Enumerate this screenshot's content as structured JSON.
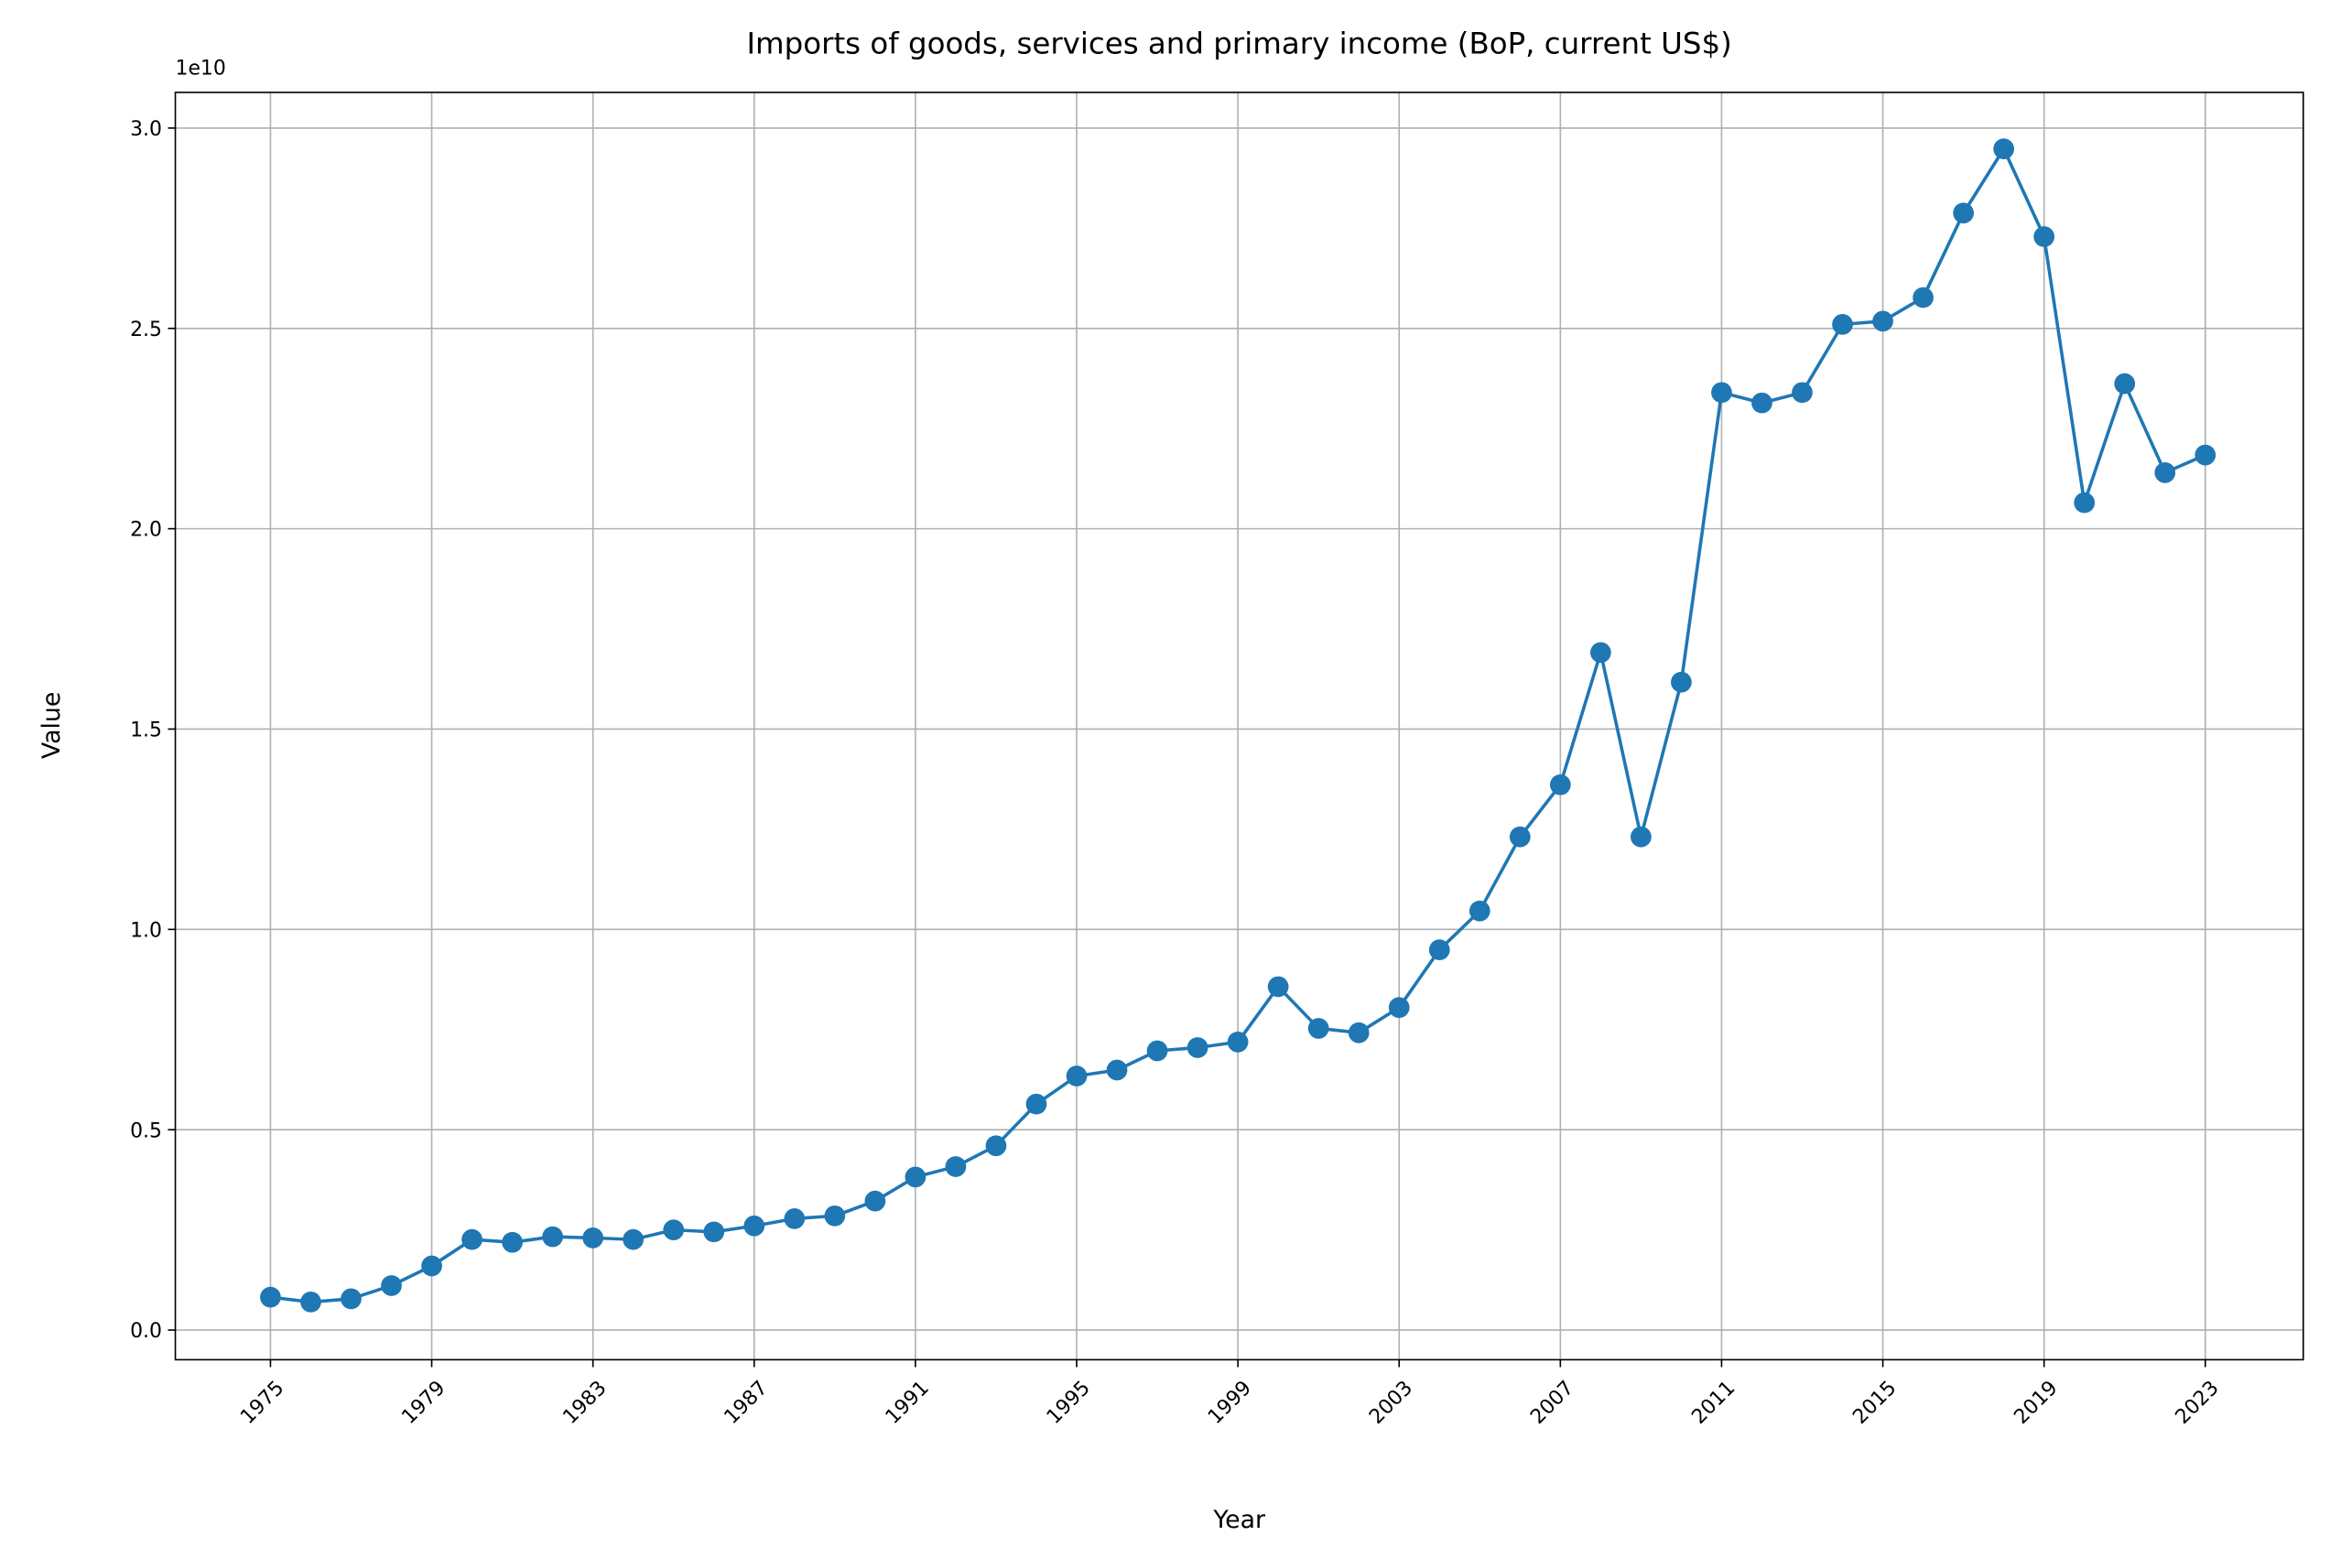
{
  "chart_data": {
    "type": "line",
    "title": "Imports of goods, services and primary income (BoP, current US$)",
    "x_label": "Year",
    "y_label": "Value",
    "y_offset_label": "1e10",
    "x": [
      1975,
      1976,
      1977,
      1978,
      1979,
      1980,
      1981,
      1982,
      1983,
      1984,
      1985,
      1986,
      1987,
      1988,
      1989,
      1990,
      1991,
      1992,
      1993,
      1994,
      1995,
      1996,
      1997,
      1998,
      1999,
      2000,
      2001,
      2002,
      2003,
      2004,
      2005,
      2006,
      2007,
      2008,
      2009,
      2010,
      2011,
      2012,
      2013,
      2014,
      2015,
      2016,
      2017,
      2018,
      2019,
      2020,
      2021,
      2022,
      2023
    ],
    "series": [
      {
        "name": "Imports",
        "color": "#1f77b4",
        "values": [
          820000000,
          700000000,
          780000000,
          1110000000,
          1600000000,
          2260000000,
          2190000000,
          2330000000,
          2300000000,
          2260000000,
          2500000000,
          2450000000,
          2600000000,
          2780000000,
          2850000000,
          3220000000,
          3820000000,
          4080000000,
          4600000000,
          5640000000,
          6340000000,
          6490000000,
          6970000000,
          7050000000,
          7190000000,
          8570000000,
          7530000000,
          7420000000,
          8050000000,
          9490000000,
          10460000000,
          12310000000,
          13610000000,
          16910000000,
          12310000000,
          16170000000,
          23400000000,
          23140000000,
          23400000000,
          25100000000,
          25180000000,
          25770000000,
          27880000000,
          29480000000,
          27290000000,
          20650000000,
          23620000000,
          21400000000,
          21840000000
        ]
      }
    ],
    "xlim": [
      1972.64,
      2025.43
    ],
    "ylim": [
      -740000000,
      30890000000
    ],
    "xticks": [
      1975,
      1979,
      1983,
      1987,
      1991,
      1995,
      1999,
      2003,
      2007,
      2011,
      2015,
      2019,
      2023
    ],
    "yticks": [
      {
        "value": 0,
        "label": "0.0"
      },
      {
        "value": 5000000000,
        "label": "0.5"
      },
      {
        "value": 10000000000,
        "label": "1.0"
      },
      {
        "value": 15000000000,
        "label": "1.5"
      },
      {
        "value": 20000000000,
        "label": "2.0"
      },
      {
        "value": 25000000000,
        "label": "2.5"
      },
      {
        "value": 30000000000,
        "label": "3.0"
      }
    ],
    "grid": true
  }
}
